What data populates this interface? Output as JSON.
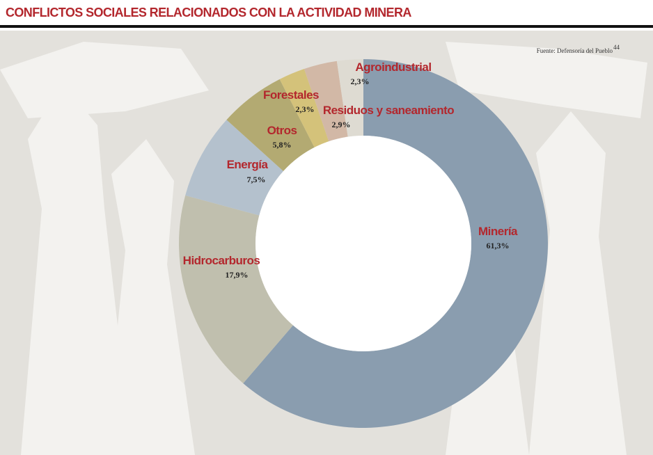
{
  "chart_data": {
    "type": "donut",
    "title": "CONFLICTOS SOCIALES RELACIONADOS CON LA ACTIVIDAD MINERA",
    "source": "Fuente: Defensoría del Pueblo",
    "source_note": "44",
    "categories": [
      "Minería",
      "Hidrocarburos",
      "Energía",
      "Otros",
      "Forestales",
      "Residuos y saneamiento",
      "Agroindustrial"
    ],
    "values": [
      61.3,
      17.9,
      7.5,
      5.8,
      2.3,
      2.9,
      2.3
    ],
    "value_labels": [
      "61,3%",
      "17,9%",
      "7,5%",
      "5,8%",
      "2,3%",
      "2,9%",
      "2,3%"
    ],
    "colors": [
      "#8a9daf",
      "#c0bfae",
      "#b4c1cd",
      "#b3aa72",
      "#d4c27a",
      "#d2b8a6",
      "#dedbd2"
    ]
  }
}
